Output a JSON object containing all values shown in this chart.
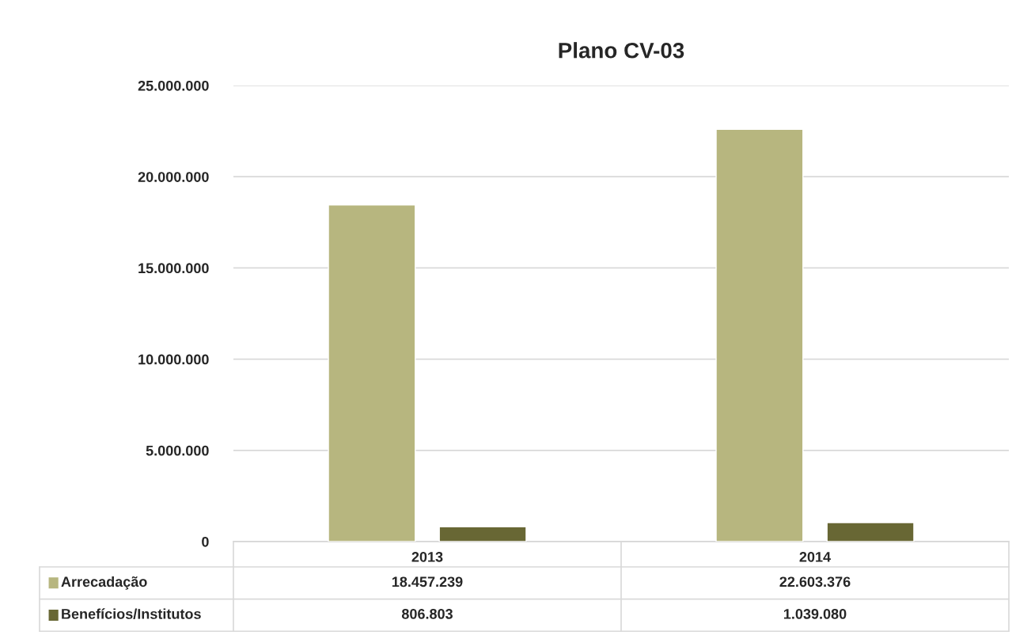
{
  "chart_data": {
    "type": "bar",
    "title": "Plano CV-03",
    "categories": [
      "2013",
      "2014"
    ],
    "series": [
      {
        "name": "Arrecadação",
        "color": "#b7b67f",
        "values": [
          18457239,
          22603376
        ],
        "value_labels": [
          "18.457.239",
          "22.603.376"
        ]
      },
      {
        "name": "Benefícios/Institutos",
        "color": "#686734",
        "values": [
          806803,
          1039080
        ],
        "value_labels": [
          "806.803",
          "1.039.080"
        ]
      }
    ],
    "ylim": [
      0,
      25000000
    ],
    "yticks": [
      {
        "value": 0,
        "label": "0"
      },
      {
        "value": 5000000,
        "label": "5.000.000"
      },
      {
        "value": 10000000,
        "label": "10.000.000"
      },
      {
        "value": 15000000,
        "label": "15.000.000"
      },
      {
        "value": 20000000,
        "label": "20.000.000"
      },
      {
        "value": 25000000,
        "label": "25.000.000"
      }
    ],
    "grid": "y",
    "legend": "bottom"
  }
}
